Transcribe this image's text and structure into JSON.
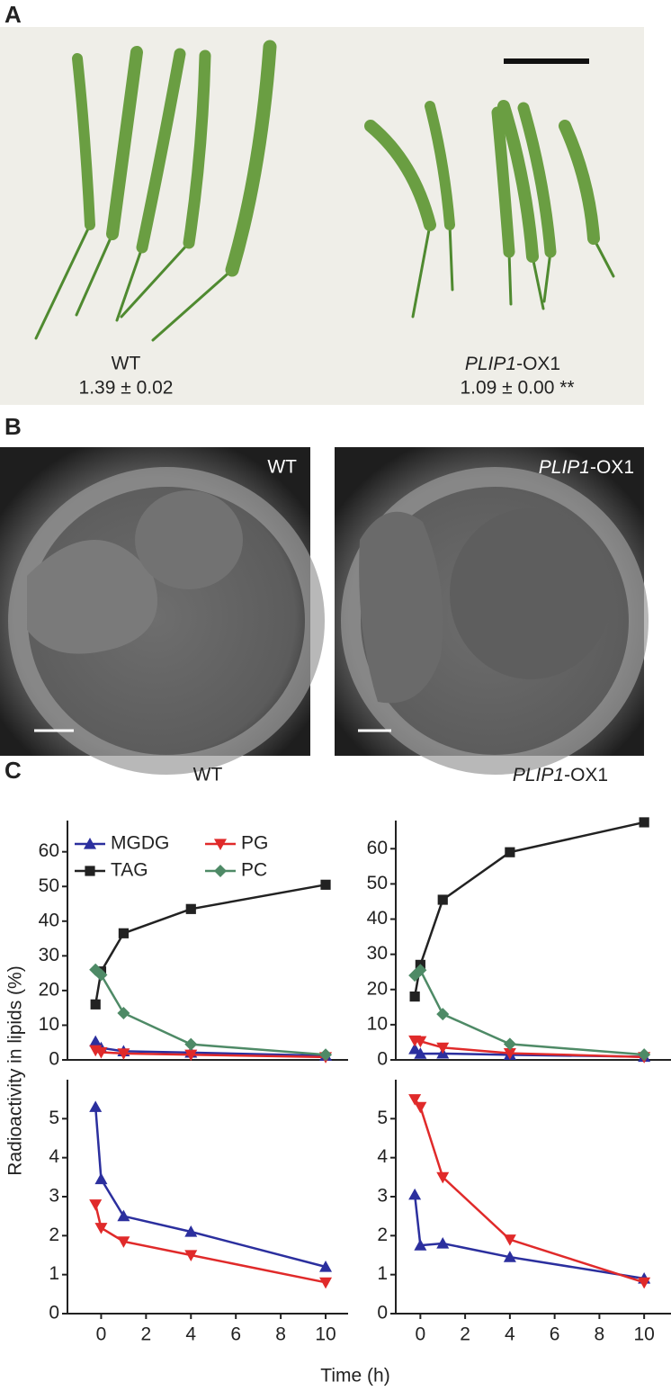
{
  "panel_a": {
    "label": "A",
    "wt_label": "WT",
    "wt_value": "1.39 ± 0.02",
    "ox_label": {
      "italic": "PLIP1",
      "text": "-OX1"
    },
    "ox_value": "1.09 ± 0.00 **"
  },
  "panel_b": {
    "label": "B",
    "left_label": "WT",
    "right_label": {
      "italic": "PLIP1",
      "text": "-OX1"
    }
  },
  "panel_c": {
    "label": "C",
    "y_label": "Radioactivity in lipids (%)",
    "x_label": "Time (h)"
  },
  "chart_data": [
    {
      "type": "line",
      "title": "WT",
      "x": [
        -0.25,
        0,
        1,
        4,
        10
      ],
      "xlim": [
        -1.5,
        11
      ],
      "ylim": [
        0,
        69
      ],
      "yticks": [
        0,
        10,
        20,
        30,
        40,
        50,
        60
      ],
      "legend": "upper-left",
      "series": [
        {
          "name": "MGDG",
          "color": "#2b2f9e",
          "marker": "triangle-up",
          "values": [
            5.3,
            3.45,
            2.5,
            2.1,
            1.2
          ]
        },
        {
          "name": "PG",
          "color": "#e02a2a",
          "marker": "triangle-down",
          "values": [
            2.8,
            2.2,
            1.85,
            1.5,
            0.8
          ]
        },
        {
          "name": "TAG",
          "color": "#222222",
          "marker": "square",
          "values": [
            16,
            25.5,
            36.5,
            43.5,
            50.5
          ]
        },
        {
          "name": "PC",
          "color": "#4e8a66",
          "marker": "diamond",
          "values": [
            26,
            24.5,
            13.5,
            4.5,
            1.5
          ]
        }
      ]
    },
    {
      "type": "line",
      "title": {
        "italic": "PLIP1",
        "text": "-OX1"
      },
      "x": [
        -0.25,
        0,
        1,
        4,
        10
      ],
      "xlim": [
        -1.1,
        11.2
      ],
      "ylim": [
        0,
        68
      ],
      "yticks": [
        0,
        10,
        20,
        30,
        40,
        50,
        60
      ],
      "series": [
        {
          "color": "#2b2f9e",
          "marker": "triangle-up",
          "values": [
            3.05,
            1.75,
            1.8,
            1.45,
            0.9
          ]
        },
        {
          "color": "#e02a2a",
          "marker": "triangle-down",
          "values": [
            5.5,
            5.3,
            3.5,
            1.9,
            0.8
          ]
        },
        {
          "color": "#222222",
          "marker": "square",
          "values": [
            18,
            27,
            45.5,
            59,
            67.5
          ]
        },
        {
          "color": "#4e8a66",
          "marker": "diamond",
          "values": [
            24,
            25.5,
            13,
            4.5,
            1.5
          ]
        }
      ]
    },
    {
      "type": "line",
      "x": [
        -0.25,
        0,
        1,
        4,
        10
      ],
      "xlim": [
        -1.5,
        11
      ],
      "ylim": [
        0,
        6
      ],
      "yticks": [
        0,
        1,
        2,
        3,
        4,
        5
      ],
      "xticks": [
        0,
        2,
        4,
        6,
        8,
        10
      ],
      "series": [
        {
          "color": "#2b2f9e",
          "marker": "triangle-up",
          "values": [
            5.3,
            3.45,
            2.5,
            2.1,
            1.2
          ]
        },
        {
          "color": "#e02a2a",
          "marker": "triangle-down",
          "values": [
            2.8,
            2.2,
            1.85,
            1.5,
            0.8
          ]
        }
      ]
    },
    {
      "type": "line",
      "x": [
        -0.25,
        0,
        1,
        4,
        10
      ],
      "xlim": [
        -1.1,
        11.2
      ],
      "ylim": [
        0,
        6
      ],
      "yticks": [
        0,
        1,
        2,
        3,
        4,
        5
      ],
      "xticks": [
        0,
        2,
        4,
        6,
        8,
        10
      ],
      "series": [
        {
          "color": "#2b2f9e",
          "marker": "triangle-up",
          "values": [
            3.05,
            1.75,
            1.8,
            1.45,
            0.9
          ]
        },
        {
          "color": "#e02a2a",
          "marker": "triangle-down",
          "values": [
            5.5,
            5.3,
            3.5,
            1.9,
            0.8
          ]
        }
      ]
    }
  ]
}
